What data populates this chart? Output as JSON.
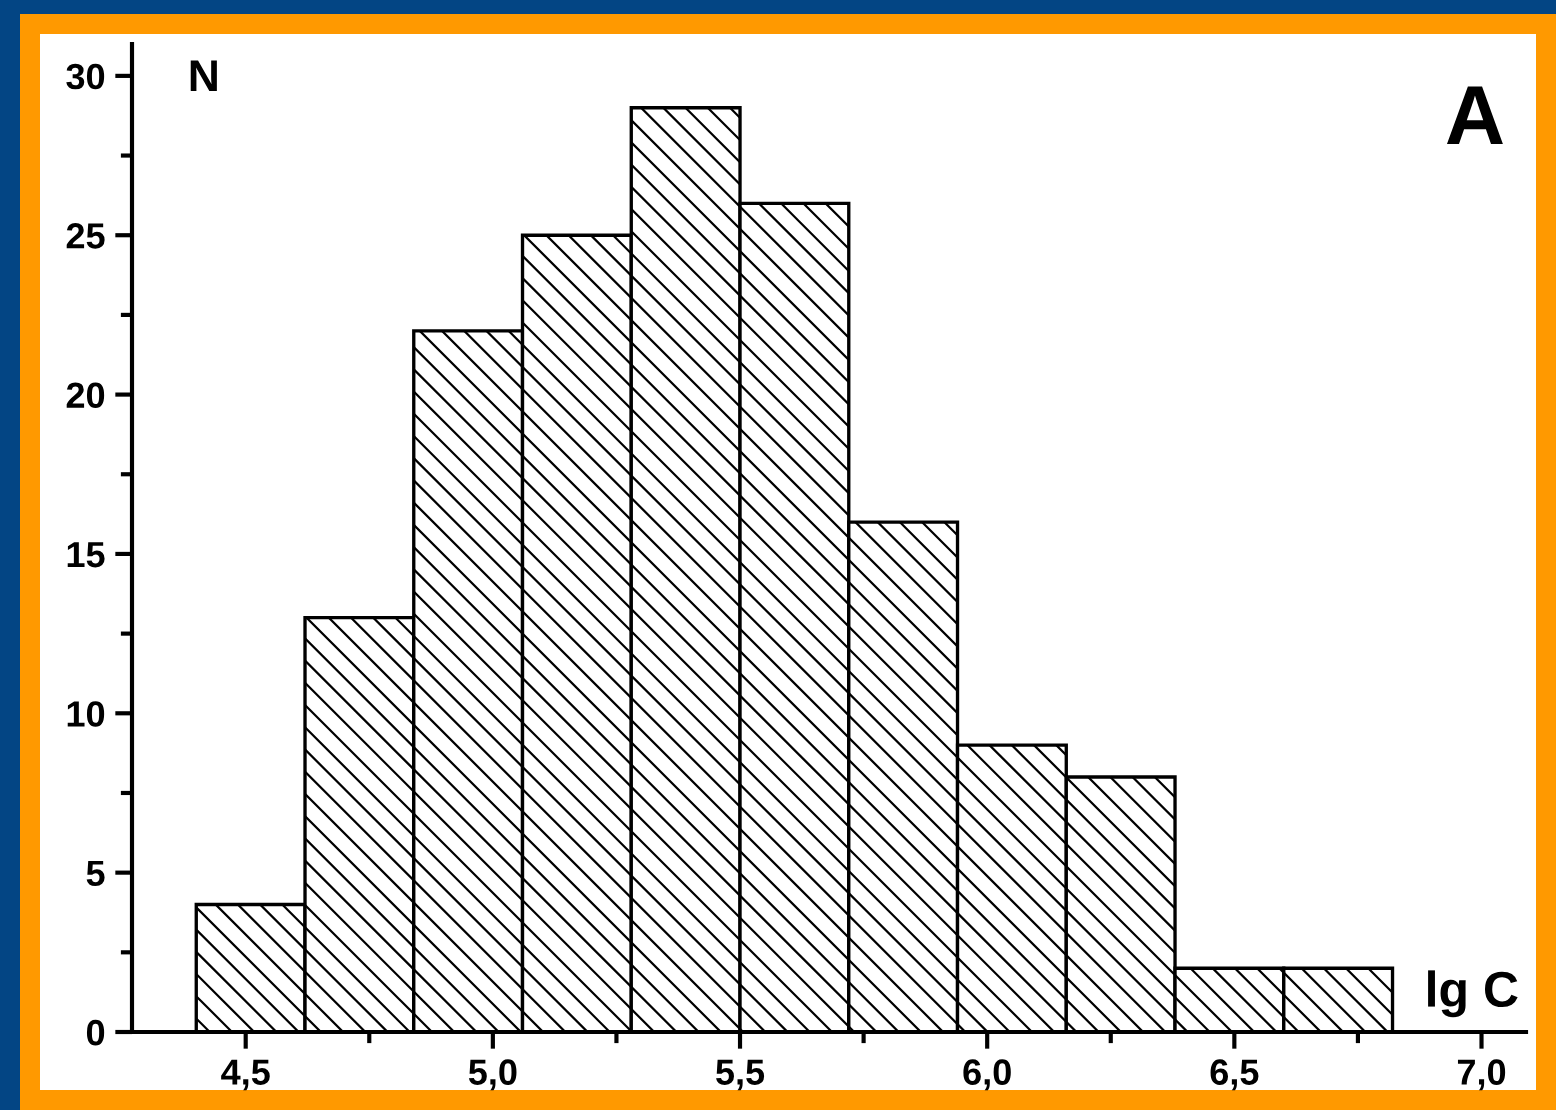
{
  "chart_data": {
    "type": "histogram",
    "xlabel": "lg C",
    "ylabel": "N",
    "annotations": [
      "A"
    ],
    "bins": [
      4.4,
      4.62,
      4.84,
      5.06,
      5.28,
      5.5,
      5.72,
      5.94,
      6.16,
      6.38,
      6.6,
      6.82
    ],
    "values": [
      4,
      13,
      22,
      25,
      29,
      26,
      16,
      9,
      8,
      2,
      2
    ],
    "xlim": [
      4.27,
      7.09
    ],
    "xticks": [
      {
        "value": 4.5,
        "label": "4,5"
      },
      {
        "value": 5.0,
        "label": "5,0"
      },
      {
        "value": 5.5,
        "label": "5,5"
      },
      {
        "value": 6.0,
        "label": "6,0"
      },
      {
        "value": 6.5,
        "label": "6,5"
      },
      {
        "value": 7.0,
        "label": "7,0"
      }
    ],
    "ylim": [
      0,
      31
    ],
    "yticks": [
      0,
      5,
      10,
      15,
      20,
      25,
      30
    ],
    "grid": false,
    "legend": false
  }
}
